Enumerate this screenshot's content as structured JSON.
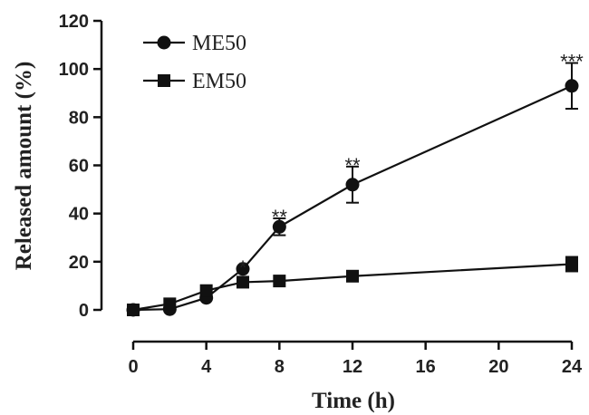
{
  "chart_data": {
    "type": "line",
    "xlabel": "Time (h)",
    "ylabel": "Released amount (%)",
    "xlim": [
      0,
      24
    ],
    "ylim": [
      0,
      120
    ],
    "xticks": [
      0,
      4,
      8,
      12,
      16,
      20,
      24
    ],
    "yticks": [
      0,
      20,
      40,
      60,
      80,
      100,
      120
    ],
    "grid": false,
    "legend_position": "top-left",
    "series": [
      {
        "name": "ME50",
        "marker": "circle",
        "color": "#111111",
        "x": [
          0,
          2,
          4,
          6,
          8,
          12,
          24
        ],
        "y": [
          0,
          0.3,
          5,
          17,
          34.5,
          52,
          93
        ],
        "error": [
          0,
          0,
          0,
          0,
          3.5,
          7.5,
          9.5
        ]
      },
      {
        "name": "EM50",
        "marker": "square",
        "color": "#111111",
        "x": [
          0,
          2,
          4,
          6,
          8,
          12,
          24
        ],
        "y": [
          0,
          2.5,
          8,
          11.5,
          12,
          14,
          19
        ],
        "error": [
          0,
          0,
          0,
          0,
          0,
          2,
          3
        ]
      }
    ],
    "annotations": [
      {
        "x": 6,
        "y": 17,
        "text": "*"
      },
      {
        "x": 8,
        "y": 38,
        "text": "**"
      },
      {
        "x": 12,
        "y": 59.5,
        "text": "**"
      },
      {
        "x": 24,
        "y": 102.5,
        "text": "***"
      }
    ]
  }
}
